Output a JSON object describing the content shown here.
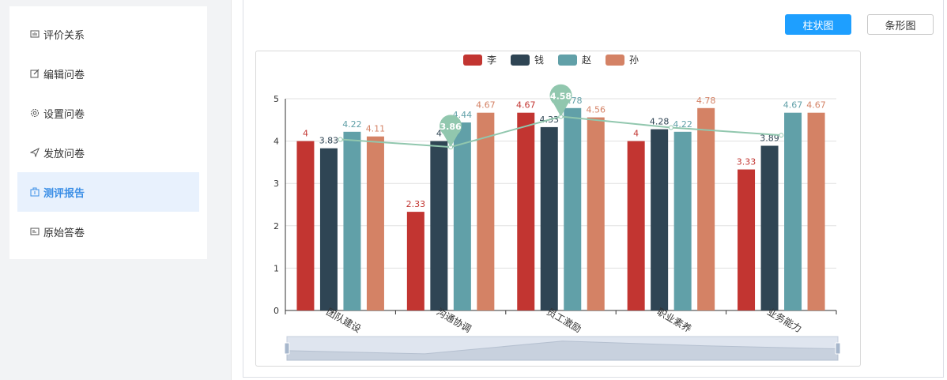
{
  "sidebar": {
    "items": [
      {
        "label": "评价关系",
        "icon": "chart-icon",
        "active": false
      },
      {
        "label": "编辑问卷",
        "icon": "edit-icon",
        "active": false
      },
      {
        "label": "设置问卷",
        "icon": "gear-icon",
        "active": false
      },
      {
        "label": "发放问卷",
        "icon": "send-icon",
        "active": false
      },
      {
        "label": "测评报告",
        "icon": "report-icon",
        "active": true
      },
      {
        "label": "原始答卷",
        "icon": "card-icon",
        "active": false
      }
    ]
  },
  "toolbar": {
    "bar_label": "柱状图",
    "hbar_label": "条形图"
  },
  "chart_data": {
    "type": "bar",
    "categories": [
      "团队建设",
      "沟通协调",
      "员工激励",
      "职业素养",
      "业务能力"
    ],
    "series": [
      {
        "name": "李",
        "color": "#c23531",
        "values": [
          4,
          2.33,
          4.67,
          4,
          3.33
        ]
      },
      {
        "name": "钱",
        "color": "#2f4554",
        "values": [
          3.83,
          4,
          4.33,
          4.28,
          3.89
        ]
      },
      {
        "name": "赵",
        "color": "#61a0a8",
        "values": [
          4.22,
          4.44,
          4.78,
          4.22,
          4.67
        ]
      },
      {
        "name": "孙",
        "color": "#d48265",
        "values": [
          4.11,
          4.67,
          4.56,
          4.78,
          4.67
        ]
      }
    ],
    "line": {
      "color": "#91c7ae",
      "values": [
        4.04,
        3.86,
        4.58,
        4.32,
        4.14
      ]
    },
    "markers": [
      {
        "index": 1,
        "value": 3.86,
        "label": "3.86"
      },
      {
        "index": 2,
        "value": 4.58,
        "label": "4.58"
      }
    ],
    "ylim": [
      0,
      5
    ],
    "yticks": [
      0,
      1,
      2,
      3,
      4,
      5
    ],
    "legend_position": "top-center",
    "grid": true,
    "datazoom": true
  }
}
